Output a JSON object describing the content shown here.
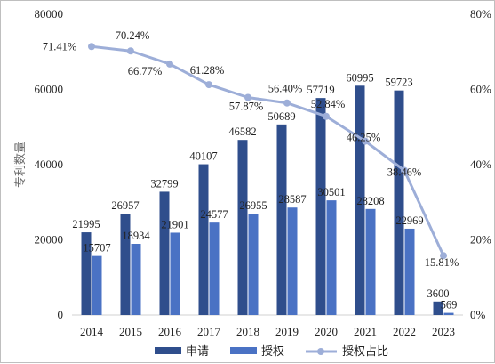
{
  "chart_data": {
    "type": "bar",
    "categories": [
      "2014",
      "2015",
      "2016",
      "2017",
      "2018",
      "2019",
      "2020",
      "2021",
      "2022",
      "2023"
    ],
    "series": [
      {
        "name": "申请",
        "type": "bar",
        "axis": "left",
        "color": "#2f4e8c",
        "values": [
          21995,
          26957,
          32799,
          40107,
          46582,
          50689,
          57719,
          60995,
          59723,
          3600
        ]
      },
      {
        "name": "授权",
        "type": "bar",
        "axis": "left",
        "color": "#4a72c4",
        "values": [
          15707,
          18934,
          21901,
          24577,
          26955,
          28587,
          30501,
          28208,
          22969,
          569
        ]
      },
      {
        "name": "授权占比",
        "type": "line",
        "axis": "right",
        "color": "#9daed8",
        "values": [
          71.41,
          70.24,
          66.77,
          61.28,
          57.87,
          56.4,
          52.84,
          46.25,
          38.46,
          15.81
        ],
        "labels": [
          "71.41%",
          "70.24%",
          "66.77%",
          "61.28%",
          "57.87%",
          "56.40%",
          "52.84%",
          "46.25%",
          "38.46%",
          "15.81%"
        ]
      }
    ],
    "ylabel": "专利数量",
    "ylim": [
      0,
      80000
    ],
    "y_ticks": [
      "0",
      "20000",
      "40000",
      "60000",
      "80000"
    ],
    "y2lim": [
      0,
      80
    ],
    "y2_ticks": [
      "0%",
      "20%",
      "40%",
      "60%",
      "80%"
    ],
    "grid": false,
    "legend_position": "bottom"
  }
}
